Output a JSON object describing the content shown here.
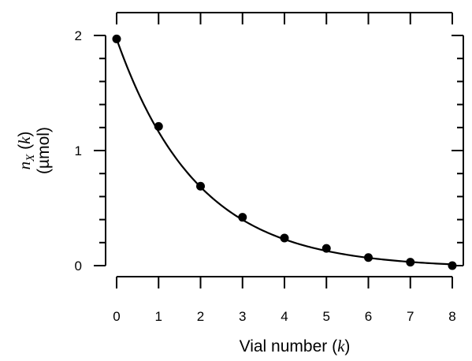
{
  "chart_data": {
    "type": "scatter",
    "title": "",
    "xlabel": {
      "text": "Vial number (",
      "variable": "k",
      "suffix": ")"
    },
    "ylabel": {
      "variable": "n",
      "subscript": "X",
      "argument_prefix": " (",
      "argument": "k",
      "argument_suffix": ")",
      "unit": "(µmol)"
    },
    "xlim": [
      0,
      8
    ],
    "ylim": [
      0,
      2
    ],
    "x_ticks": [
      0,
      1,
      2,
      3,
      4,
      5,
      6,
      7,
      8
    ],
    "x_tick_labels": [
      "0",
      "1",
      "2",
      "3",
      "4",
      "5",
      "6",
      "7",
      "8"
    ],
    "y_ticks": [
      0,
      1,
      2
    ],
    "y_tick_labels": [
      "0",
      "1",
      "2"
    ],
    "y_minor_step": 0.2,
    "grid": false,
    "legend": "none",
    "series": [
      {
        "x": [
          0,
          1,
          2,
          3,
          4,
          5,
          6,
          7,
          8
        ],
        "values": [
          1.97,
          1.21,
          0.69,
          0.42,
          0.24,
          0.15,
          0.07,
          0.03,
          0.0
        ]
      }
    ],
    "fit_curve": {
      "form": "exponential decay",
      "x_range": [
        0,
        8
      ]
    },
    "colors": {
      "marks": "#000000",
      "background": "#ffffff"
    }
  }
}
